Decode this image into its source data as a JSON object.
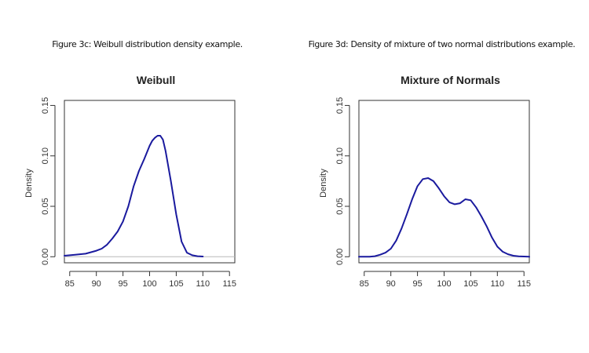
{
  "chart_data": [
    {
      "type": "line",
      "caption": "Figure 3c: Weibull distribution density example.",
      "title": "Weibull",
      "xlabel": "",
      "ylabel": "Density",
      "xlim": [
        84,
        116
      ],
      "ylim": [
        -0.006,
        0.155
      ],
      "xticks": [
        85,
        90,
        95,
        100,
        105,
        110,
        115
      ],
      "yticks": [
        0.0,
        0.05,
        0.1,
        0.15
      ],
      "ytick_labels": [
        "0.00",
        "0.05",
        "0.10",
        "0.15"
      ],
      "baseline": 0,
      "line_color": "#1a1a9e",
      "series": [
        {
          "x": [
            84,
            86,
            88,
            90,
            91,
            92,
            93,
            94,
            95,
            96,
            97,
            98,
            99,
            100,
            100.5,
            101,
            101.5,
            102,
            102.5,
            103,
            104,
            105,
            106,
            107,
            108,
            109,
            110
          ],
          "y": [
            0.001,
            0.002,
            0.003,
            0.006,
            0.008,
            0.012,
            0.018,
            0.025,
            0.035,
            0.05,
            0.07,
            0.085,
            0.097,
            0.11,
            0.115,
            0.118,
            0.12,
            0.12,
            0.116,
            0.105,
            0.075,
            0.042,
            0.015,
            0.004,
            0.0015,
            0.0005,
            0.0002
          ]
        }
      ]
    },
    {
      "type": "line",
      "caption": "Figure 3d: Density of mixture of two normal distributions example.",
      "title": "Mixture of Normals",
      "xlabel": "",
      "ylabel": "Density",
      "xlim": [
        84,
        116
      ],
      "ylim": [
        -0.006,
        0.155
      ],
      "xticks": [
        85,
        90,
        95,
        100,
        105,
        110,
        115
      ],
      "yticks": [
        0.0,
        0.05,
        0.1,
        0.15
      ],
      "ytick_labels": [
        "0.00",
        "0.05",
        "0.10",
        "0.15"
      ],
      "baseline": 0,
      "line_color": "#1a1a9e",
      "series": [
        {
          "x": [
            84,
            86,
            87,
            88,
            89,
            90,
            91,
            92,
            93,
            94,
            95,
            96,
            97,
            98,
            99,
            100,
            101,
            102,
            103,
            104,
            105,
            106,
            107,
            108,
            109,
            110,
            111,
            112,
            113,
            114,
            116
          ],
          "y": [
            0.0,
            0.0,
            0.0005,
            0.002,
            0.004,
            0.008,
            0.016,
            0.028,
            0.042,
            0.057,
            0.07,
            0.077,
            0.078,
            0.075,
            0.068,
            0.06,
            0.054,
            0.052,
            0.053,
            0.057,
            0.056,
            0.049,
            0.04,
            0.03,
            0.019,
            0.01,
            0.005,
            0.0025,
            0.001,
            0.0004,
            0.0
          ]
        }
      ]
    }
  ]
}
